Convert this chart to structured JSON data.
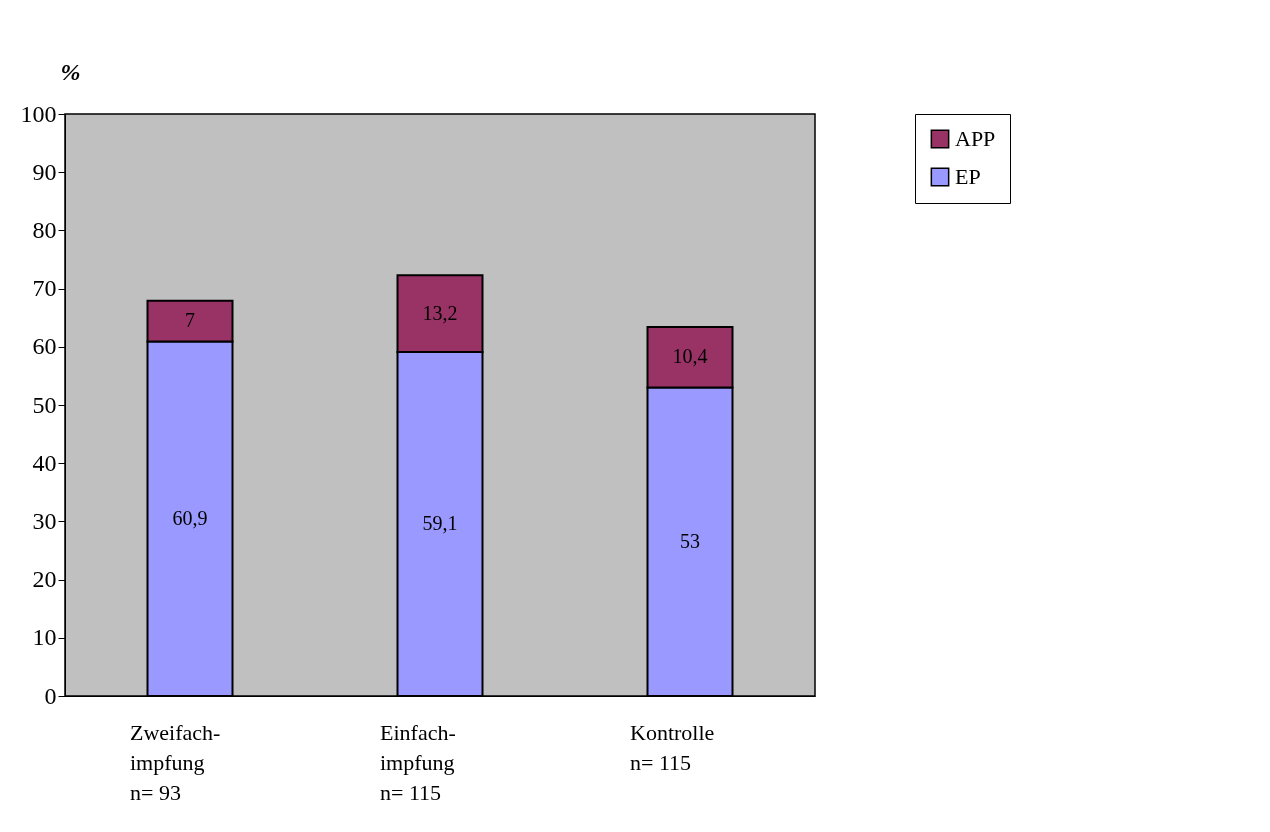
{
  "chart_data": {
    "type": "bar",
    "ylabel": "%",
    "stacked": true,
    "categories": [
      "Zweifach-\nimpfung\nn= 93",
      "Einfach-\nimpfung\nn= 115",
      "Kontrolle\nn= 115"
    ],
    "series": [
      {
        "name": "EP",
        "color": "#9999ff",
        "values": [
          60.9,
          59.1,
          53
        ],
        "value_labels": [
          "60,9",
          "59,1",
          "53"
        ]
      },
      {
        "name": "APP",
        "color": "#993366",
        "values": [
          7,
          13.2,
          10.4
        ],
        "value_labels": [
          "7",
          "13,2",
          "10,4"
        ]
      }
    ],
    "ylim": [
      0,
      100
    ],
    "yticks": [
      0,
      10,
      20,
      30,
      40,
      50,
      60,
      70,
      80,
      90,
      100
    ],
    "grid": false,
    "legend": "right"
  }
}
